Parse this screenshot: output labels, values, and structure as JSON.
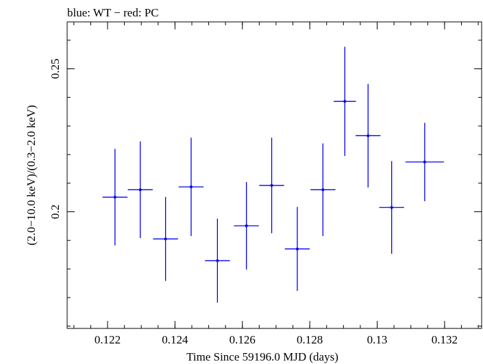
{
  "chart_data": {
    "type": "scatter",
    "title": "blue: WT − red: PC",
    "xlabel": "Time Since 59196.0 MJD (days)",
    "ylabel": "(2.0−10.0 keV)/(0.3−2.0 keV)",
    "xlim": [
      0.1208,
      0.1331
    ],
    "ylim": [
      0.1592,
      0.2664
    ],
    "x_ticks": [
      {
        "value": 0.122,
        "label": "0.122"
      },
      {
        "value": 0.124,
        "label": "0.124"
      },
      {
        "value": 0.126,
        "label": "0.126"
      },
      {
        "value": 0.128,
        "label": "0.128"
      },
      {
        "value": 0.13,
        "label": "0.13"
      },
      {
        "value": 0.132,
        "label": "0.132"
      }
    ],
    "x_minor_step": 0.0005,
    "y_ticks": [
      {
        "value": 0.2,
        "label": "0.2"
      },
      {
        "value": 0.25,
        "label": "0.25"
      }
    ],
    "y_minor_step": 0.01,
    "grid": false,
    "series": [
      {
        "color": "#0000ee",
        "points": [
          {
            "x": 0.12222,
            "y": 0.2051,
            "xerr": 0.00037,
            "yerr": 0.0169
          },
          {
            "x": 0.12297,
            "y": 0.2077,
            "xerr": 0.00037,
            "yerr": 0.0169
          },
          {
            "x": 0.12372,
            "y": 0.1905,
            "xerr": 0.00037,
            "yerr": 0.0147
          },
          {
            "x": 0.12448,
            "y": 0.2087,
            "xerr": 0.00037,
            "yerr": 0.0172
          },
          {
            "x": 0.12526,
            "y": 0.1829,
            "xerr": 0.00037,
            "yerr": 0.0147
          },
          {
            "x": 0.12612,
            "y": 0.1951,
            "xerr": 0.00037,
            "yerr": 0.0153
          },
          {
            "x": 0.12687,
            "y": 0.2092,
            "xerr": 0.00037,
            "yerr": 0.0167
          },
          {
            "x": 0.12763,
            "y": 0.187,
            "xerr": 0.00037,
            "yerr": 0.0147
          },
          {
            "x": 0.12839,
            "y": 0.2077,
            "xerr": 0.00037,
            "yerr": 0.0162
          },
          {
            "x": 0.12904,
            "y": 0.2386,
            "xerr": 0.00033,
            "yerr": 0.0191
          },
          {
            "x": 0.12973,
            "y": 0.2266,
            "xerr": 0.00037,
            "yerr": 0.0181
          },
          {
            "x": 0.13043,
            "y": 0.2015,
            "xerr": 0.00037,
            "yerr": 0.0162
          },
          {
            "x": 0.13141,
            "y": 0.2174,
            "xerr": 0.00057,
            "yerr": 0.0137
          }
        ]
      }
    ]
  }
}
